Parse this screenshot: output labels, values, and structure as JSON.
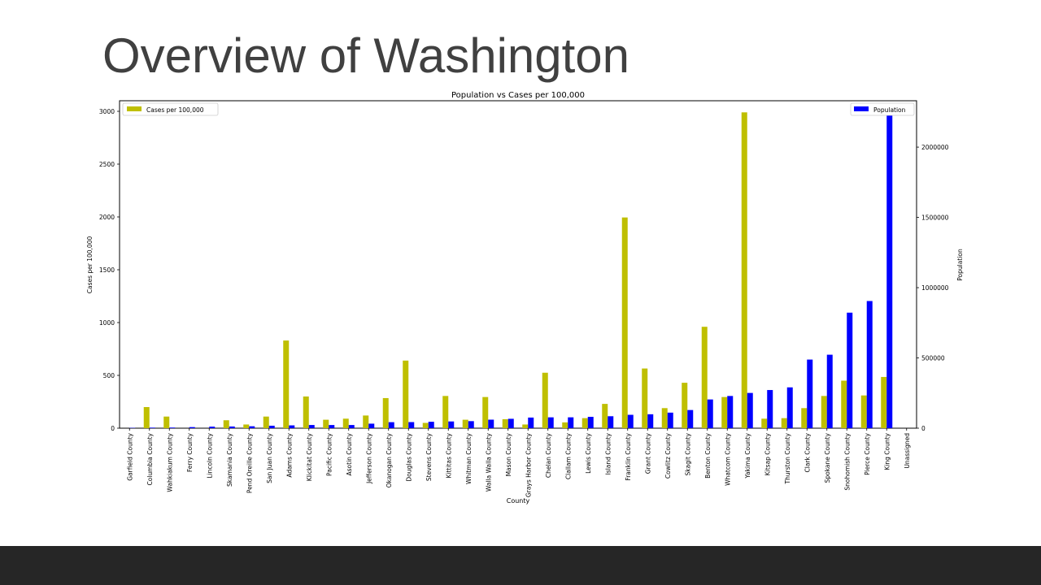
{
  "slide": {
    "title": "Overview of Washington"
  },
  "chart_data": {
    "type": "bar",
    "title": "Population vs Cases per 100,000",
    "xlabel": "County",
    "ylabel": "Cases per 100,000",
    "y2label": "Population",
    "ylim": [
      0,
      3100
    ],
    "y2lim": [
      0,
      2330000
    ],
    "yticks": [
      0,
      500,
      1000,
      1500,
      2000,
      2500,
      3000
    ],
    "y2ticks": [
      0,
      500000,
      1000000,
      1500000,
      2000000
    ],
    "categories": [
      "Garfield County",
      "Columbia County",
      "Wahkiakum County",
      "Ferry County",
      "Lincoln County",
      "Skamania County",
      "Pend Oreille County",
      "San Juan County",
      "Adams County",
      "Klickitat County",
      "Pacific County",
      "Asotin County",
      "Jefferson County",
      "Okanogan County",
      "Douglas County",
      "Stevens County",
      "Kittitas County",
      "Whitman County",
      "Walla Walla County",
      "Mason County",
      "Grays Harbor County",
      "Chelan County",
      "Clallam County",
      "Lewis County",
      "Island County",
      "Franklin County",
      "Grant County",
      "Cowlitz County",
      "Skagit County",
      "Benton County",
      "Whatcom County",
      "Yakima County",
      "Kitsap County",
      "Thurston County",
      "Clark County",
      "Spokane County",
      "Snohomish County",
      "Pierce County",
      "King County",
      "Unassigned"
    ],
    "series": [
      {
        "name": "Cases per 100,000",
        "color": "#bfbf00",
        "axis": "left",
        "legend": "top-left",
        "values": [
          0,
          200,
          110,
          0,
          0,
          75,
          35,
          110,
          830,
          300,
          80,
          90,
          120,
          285,
          640,
          50,
          305,
          80,
          295,
          85,
          35,
          525,
          55,
          95,
          230,
          1995,
          565,
          190,
          430,
          960,
          295,
          2990,
          90,
          95,
          190,
          305,
          450,
          310,
          485,
          0
        ]
      },
      {
        "name": "Population",
        "color": "#0000ff",
        "axis": "right",
        "legend": "top-right",
        "values": [
          2200,
          4000,
          4500,
          7700,
          10900,
          12000,
          13600,
          17600,
          20000,
          22700,
          22500,
          22600,
          32200,
          42800,
          43400,
          45700,
          47900,
          50100,
          60700,
          66800,
          75600,
          77200,
          77300,
          80700,
          85100,
          95200,
          99100,
          110700,
          129200,
          204400,
          229200,
          250800,
          271500,
          290500,
          488200,
          522800,
          822100,
          904900,
          2253000,
          0
        ]
      }
    ]
  }
}
